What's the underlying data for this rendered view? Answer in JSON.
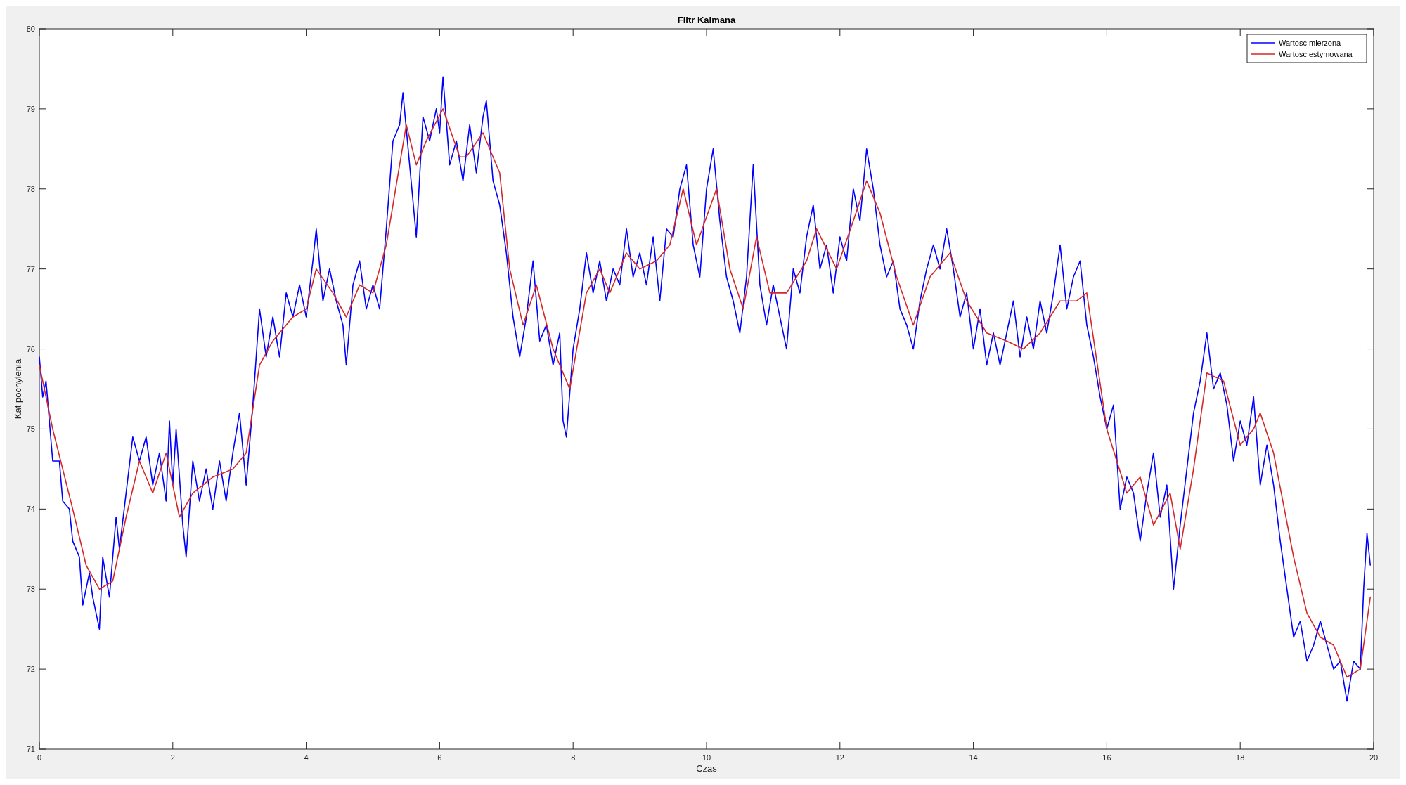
{
  "chart_data": {
    "type": "line",
    "title": "Filtr Kalmana",
    "xlabel": "Czas",
    "ylabel": "Kat pochylenia",
    "xlim": [
      0,
      20
    ],
    "xticks": [
      0,
      2,
      4,
      6,
      8,
      10,
      12,
      14,
      16,
      18,
      20
    ],
    "ylim": [
      71,
      80
    ],
    "yticks": [
      71,
      72,
      73,
      74,
      75,
      76,
      77,
      78,
      79,
      80
    ],
    "grid": false,
    "legend": "top right",
    "line_style": "solid",
    "marker": "none",
    "series": [
      {
        "name": "Wartosc mierzona",
        "color": "#0000ff",
        "x": [
          0,
          0.05,
          0.1,
          0.2,
          0.3,
          0.35,
          0.45,
          0.5,
          0.6,
          0.65,
          0.75,
          0.8,
          0.9,
          0.95,
          1.05,
          1.15,
          1.2,
          1.3,
          1.4,
          1.5,
          1.6,
          1.7,
          1.8,
          1.9,
          1.95,
          2,
          2.05,
          2.15,
          2.2,
          2.3,
          2.4,
          2.5,
          2.6,
          2.7,
          2.8,
          2.9,
          3,
          3.1,
          3.2,
          3.3,
          3.4,
          3.5,
          3.6,
          3.7,
          3.8,
          3.9,
          4,
          4.1,
          4.15,
          4.25,
          4.35,
          4.45,
          4.55,
          4.6,
          4.7,
          4.8,
          4.9,
          5,
          5.1,
          5.2,
          5.3,
          5.4,
          5.45,
          5.55,
          5.65,
          5.75,
          5.85,
          5.95,
          6,
          6.05,
          6.15,
          6.25,
          6.35,
          6.45,
          6.55,
          6.65,
          6.7,
          6.8,
          6.9,
          7,
          7.1,
          7.2,
          7.3,
          7.4,
          7.5,
          7.6,
          7.7,
          7.8,
          7.85,
          7.9,
          8,
          8.1,
          8.2,
          8.3,
          8.4,
          8.5,
          8.6,
          8.7,
          8.8,
          8.9,
          9,
          9.1,
          9.2,
          9.3,
          9.4,
          9.5,
          9.6,
          9.7,
          9.8,
          9.9,
          10,
          10.1,
          10.2,
          10.3,
          10.4,
          10.5,
          10.6,
          10.7,
          10.8,
          10.9,
          11,
          11.1,
          11.2,
          11.3,
          11.4,
          11.5,
          11.6,
          11.7,
          11.8,
          11.9,
          12,
          12.1,
          12.2,
          12.3,
          12.4,
          12.5,
          12.6,
          12.7,
          12.8,
          12.9,
          13,
          13.1,
          13.2,
          13.3,
          13.4,
          13.5,
          13.6,
          13.7,
          13.8,
          13.9,
          14,
          14.1,
          14.2,
          14.3,
          14.4,
          14.5,
          14.6,
          14.7,
          14.8,
          14.9,
          15,
          15.1,
          15.2,
          15.3,
          15.4,
          15.5,
          15.6,
          15.7,
          15.8,
          15.9,
          16,
          16.1,
          16.2,
          16.3,
          16.4,
          16.5,
          16.6,
          16.7,
          16.8,
          16.9,
          17,
          17.1,
          17.2,
          17.3,
          17.4,
          17.5,
          17.6,
          17.7,
          17.8,
          17.9,
          18,
          18.1,
          18.2,
          18.3,
          18.4,
          18.5,
          18.6,
          18.7,
          18.8,
          18.9,
          19,
          19.1,
          19.2,
          19.3,
          19.4,
          19.5,
          19.6,
          19.7,
          19.8,
          19.85,
          19.9,
          19.95
        ],
        "values": [
          75.9,
          75.4,
          75.6,
          74.6,
          74.6,
          74.1,
          74.0,
          73.6,
          73.4,
          72.8,
          73.2,
          72.9,
          72.5,
          73.4,
          72.9,
          73.9,
          73.5,
          74.2,
          74.9,
          74.6,
          74.9,
          74.3,
          74.7,
          74.1,
          75.1,
          74.3,
          75.0,
          73.8,
          73.4,
          74.6,
          74.1,
          74.5,
          74.0,
          74.6,
          74.1,
          74.7,
          75.2,
          74.3,
          75.3,
          76.5,
          75.9,
          76.4,
          75.9,
          76.7,
          76.4,
          76.8,
          76.4,
          77.1,
          77.5,
          76.6,
          77.0,
          76.6,
          76.3,
          75.8,
          76.8,
          77.1,
          76.5,
          76.8,
          76.5,
          77.5,
          78.6,
          78.8,
          79.2,
          78.3,
          77.4,
          78.9,
          78.6,
          79.0,
          78.7,
          79.4,
          78.3,
          78.6,
          78.1,
          78.8,
          78.2,
          78.9,
          79.1,
          78.1,
          77.8,
          77.2,
          76.4,
          75.9,
          76.4,
          77.1,
          76.1,
          76.3,
          75.8,
          76.2,
          75.1,
          74.9,
          76.0,
          76.5,
          77.2,
          76.7,
          77.1,
          76.6,
          77.0,
          76.8,
          77.5,
          76.9,
          77.2,
          76.8,
          77.4,
          76.6,
          77.5,
          77.4,
          78.0,
          78.3,
          77.3,
          76.9,
          78.0,
          78.5,
          77.6,
          76.9,
          76.6,
          76.2,
          76.9,
          78.3,
          76.8,
          76.3,
          76.8,
          76.4,
          76.0,
          77.0,
          76.7,
          77.4,
          77.8,
          77.0,
          77.3,
          76.7,
          77.4,
          77.1,
          78.0,
          77.6,
          78.5,
          78.0,
          77.3,
          76.9,
          77.1,
          76.5,
          76.3,
          76.0,
          76.6,
          77.0,
          77.3,
          77.0,
          77.5,
          77.0,
          76.4,
          76.7,
          76.0,
          76.5,
          75.8,
          76.2,
          75.8,
          76.2,
          76.6,
          75.9,
          76.4,
          76.0,
          76.6,
          76.2,
          76.7,
          77.3,
          76.5,
          76.9,
          77.1,
          76.3,
          75.9,
          75.4,
          75.0,
          75.3,
          74.0,
          74.4,
          74.2,
          73.6,
          74.2,
          74.7,
          73.9,
          74.3,
          73.0,
          73.8,
          74.5,
          75.2,
          75.6,
          76.2,
          75.5,
          75.7,
          75.3,
          74.6,
          75.1,
          74.8,
          75.4,
          74.3,
          74.8,
          74.3,
          73.6,
          73.0,
          72.4,
          72.6,
          72.1,
          72.3,
          72.6,
          72.3,
          72.0,
          72.1,
          71.6,
          72.1,
          72.0,
          73.0,
          73.7,
          73.3
        ]
      },
      {
        "name": "Wartosc estymowana",
        "color": "#d62728",
        "x": [
          0,
          0.2,
          0.5,
          0.7,
          0.9,
          1.1,
          1.3,
          1.5,
          1.7,
          1.9,
          2.1,
          2.3,
          2.6,
          2.9,
          3.1,
          3.3,
          3.5,
          3.8,
          4,
          4.15,
          4.4,
          4.6,
          4.8,
          5,
          5.2,
          5.4,
          5.5,
          5.65,
          5.8,
          6.05,
          6.3,
          6.4,
          6.65,
          6.9,
          7.05,
          7.25,
          7.45,
          7.7,
          7.95,
          8.2,
          8.4,
          8.55,
          8.8,
          9,
          9.25,
          9.45,
          9.65,
          9.85,
          10.15,
          10.35,
          10.55,
          10.75,
          10.95,
          11.2,
          11.5,
          11.65,
          11.95,
          12.2,
          12.4,
          12.6,
          12.85,
          13.1,
          13.35,
          13.65,
          13.9,
          14.2,
          14.5,
          14.75,
          15,
          15.3,
          15.55,
          15.7,
          16,
          16.3,
          16.5,
          16.7,
          16.95,
          17.1,
          17.3,
          17.5,
          17.75,
          18,
          18.2,
          18.3,
          18.5,
          18.8,
          19,
          19.2,
          19.4,
          19.6,
          19.8,
          19.95
        ],
        "values": [
          75.8,
          75.0,
          74.0,
          73.3,
          73.0,
          73.1,
          73.9,
          74.6,
          74.2,
          74.7,
          73.9,
          74.2,
          74.4,
          74.5,
          74.7,
          75.8,
          76.1,
          76.4,
          76.5,
          77.0,
          76.7,
          76.4,
          76.8,
          76.7,
          77.3,
          78.3,
          78.8,
          78.3,
          78.6,
          79.0,
          78.4,
          78.4,
          78.7,
          78.2,
          77.0,
          76.3,
          76.8,
          76.0,
          75.5,
          76.7,
          77.0,
          76.7,
          77.2,
          77.0,
          77.1,
          77.3,
          78.0,
          77.3,
          78.0,
          77.0,
          76.5,
          77.4,
          76.7,
          76.7,
          77.1,
          77.5,
          77.0,
          77.6,
          78.1,
          77.7,
          76.9,
          76.3,
          76.9,
          77.2,
          76.6,
          76.2,
          76.1,
          76.0,
          76.2,
          76.6,
          76.6,
          76.7,
          75.0,
          74.2,
          74.4,
          73.8,
          74.2,
          73.5,
          74.5,
          75.7,
          75.6,
          74.8,
          75.0,
          75.2,
          74.7,
          73.4,
          72.7,
          72.4,
          72.3,
          71.9,
          72.0,
          72.9
        ]
      }
    ]
  }
}
